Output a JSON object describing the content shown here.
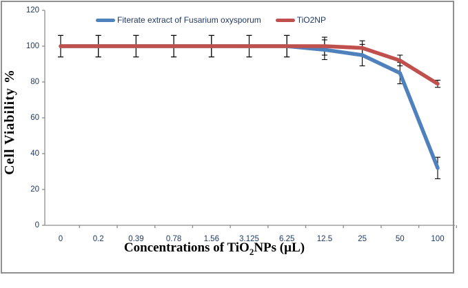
{
  "chart_data": {
    "type": "line",
    "title": "",
    "categories": [
      "0",
      "0.2",
      "0.39",
      "0.78",
      "1.56",
      "3.125",
      "6.25",
      "12.5",
      "25",
      "50",
      "100"
    ],
    "series": [
      {
        "name": "Fiterate extract of Fusarium oxysporum",
        "color": "#4F81BD",
        "values": [
          100,
          100,
          100,
          100,
          100,
          100,
          100,
          98,
          95,
          85,
          32
        ],
        "error": [
          6,
          6,
          6,
          6,
          6,
          6,
          6,
          5.5,
          6,
          6,
          6
        ]
      },
      {
        "name": "TiO2NP",
        "color": "#C0504D",
        "values": [
          100,
          100,
          100,
          100,
          100,
          100,
          100,
          100,
          99,
          92,
          79
        ],
        "error": [
          6,
          6,
          6,
          6,
          6,
          6,
          6,
          5,
          4,
          3,
          2
        ]
      }
    ],
    "xlabel": "Concentrations of TiO2NPs (µL)",
    "xlabel_parts": [
      "Concentrations of TiO",
      "2",
      "NPs (µL)"
    ],
    "ylabel": "Cell Viability %",
    "ylim": [
      0,
      120
    ],
    "yticks": [
      "0",
      "20",
      "40",
      "60",
      "80",
      "100",
      "120"
    ],
    "grid": false,
    "legend_position": "top",
    "axis_line_color": "#8C8C8C",
    "tick_text_color": "#1F3864",
    "error_bar_color": "#000000",
    "frame_color": "#8F8F8F"
  }
}
